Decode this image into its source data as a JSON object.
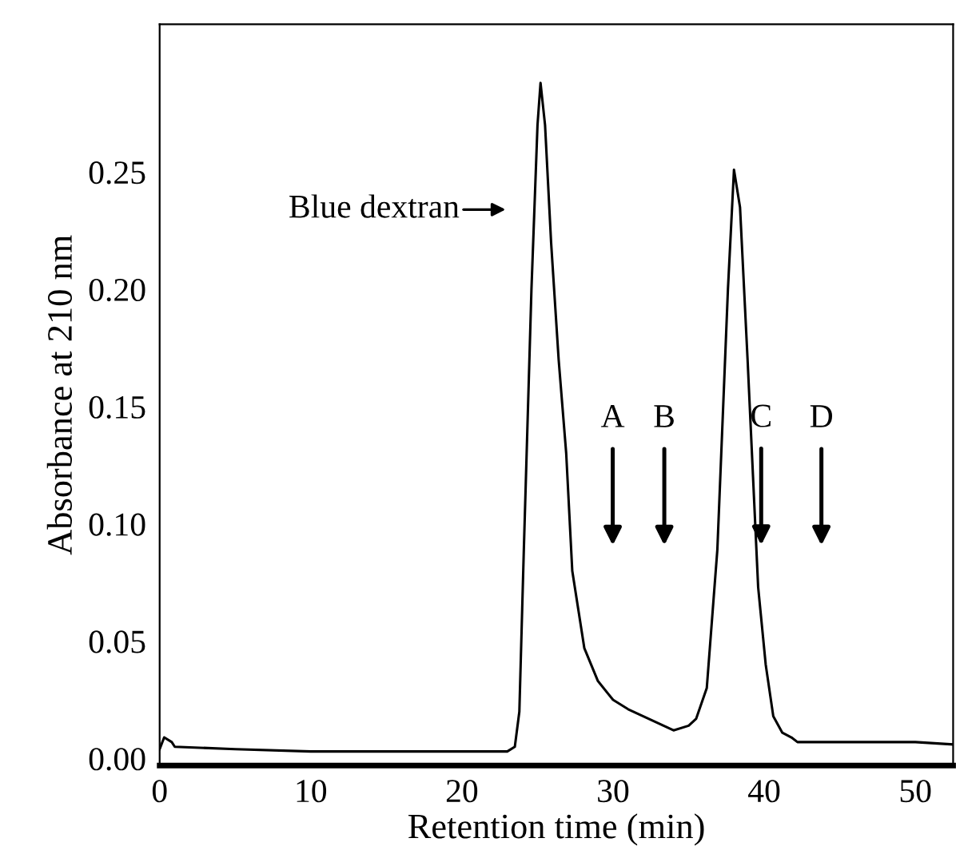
{
  "chart_data": {
    "type": "line",
    "xlabel": "Retention time (min)",
    "ylabel": "Absorbance at 210 nm",
    "x": [
      0,
      0.3,
      0.8,
      1,
      5,
      10,
      20,
      23,
      23.5,
      23.8,
      24.1,
      24.6,
      25.0,
      25.2,
      25.5,
      25.9,
      26.4,
      26.9,
      27.3,
      28.1,
      29,
      30,
      31,
      32,
      33,
      34,
      35,
      35.5,
      36.2,
      36.9,
      37.6,
      38.0,
      38.4,
      38.9,
      39.6,
      40.1,
      40.6,
      41.2,
      41.8,
      42.2,
      45,
      50,
      52.5
    ],
    "series": [
      {
        "color": "#000000",
        "values": [
          0.004,
          0.009,
          0.007,
          0.005,
          0.004,
          0.003,
          0.003,
          0.003,
          0.005,
          0.02,
          0.09,
          0.2,
          0.27,
          0.288,
          0.27,
          0.22,
          0.17,
          0.13,
          0.08,
          0.047,
          0.033,
          0.025,
          0.021,
          0.018,
          0.015,
          0.012,
          0.014,
          0.017,
          0.03,
          0.089,
          0.2,
          0.251,
          0.235,
          0.17,
          0.073,
          0.04,
          0.018,
          0.011,
          0.009,
          0.007,
          0.007,
          0.007,
          0.006
        ]
      }
    ],
    "annotations": [
      "Blue dextran",
      "A",
      "B",
      {
        "text": "C",
        "x": 39.8,
        "y": 0.091
      },
      "D"
    ],
    "xlim": [
      0,
      52.5
    ],
    "ylim": [
      -0.003,
      0.313
    ],
    "xticks": [
      0,
      10,
      20,
      30,
      40,
      50
    ],
    "yticks": [
      {
        "value": 0,
        "label": "0.00"
      },
      {
        "value": 0.05,
        "label": "0.05"
      },
      {
        "value": 0.1,
        "label": "0.10"
      },
      {
        "value": 0.15,
        "label": "0.15"
      },
      {
        "value": 0.2,
        "label": "0.20"
      },
      {
        "value": 0.25,
        "label": "0.25"
      }
    ],
    "grid": false,
    "legend": false,
    "marker": "none",
    "line_style": "solid"
  }
}
